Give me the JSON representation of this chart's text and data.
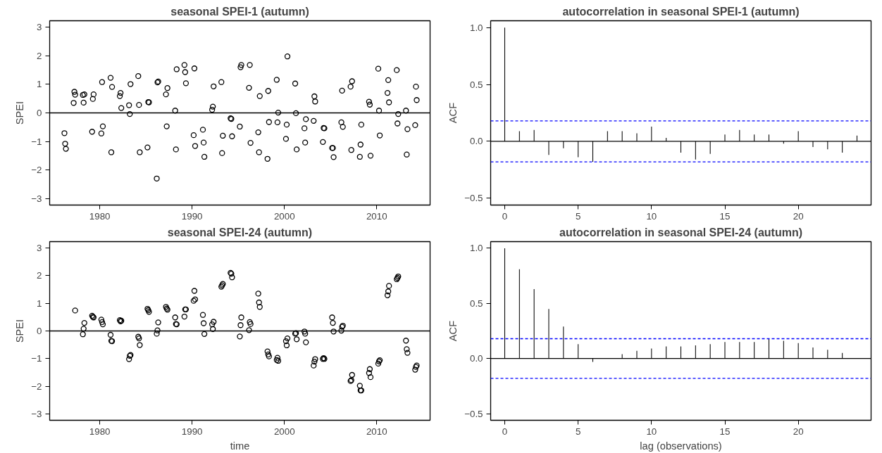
{
  "chart_data": [
    {
      "type": "scatter",
      "title": "seasonal SPEI-1 (autumn)",
      "ylabel": "SPEI",
      "marker": "circle",
      "xlim": [
        1974.57,
        2015.78
      ],
      "ylim": [
        -3.23,
        3.23
      ],
      "xticks": [
        1980,
        1990,
        2000,
        2010
      ],
      "yticks": [
        -3,
        -2,
        -1,
        0,
        1,
        2,
        3
      ],
      "ref_lines": [
        {
          "axis": "y",
          "value": 0,
          "color": "#000000",
          "line_style": "solid"
        }
      ],
      "x": [
        1976.17,
        1976.25,
        1976.33,
        1977.17,
        1977.25,
        1977.33,
        1978.17,
        1978.25,
        1978.33,
        1979.17,
        1979.25,
        1979.33,
        1980.17,
        1980.25,
        1980.33,
        1981.17,
        1981.25,
        1981.33,
        1982.17,
        1982.25,
        1982.33,
        1983.17,
        1983.25,
        1983.33,
        1984.17,
        1984.25,
        1984.33,
        1985.17,
        1985.25,
        1985.33,
        1986.17,
        1986.25,
        1986.33,
        1987.17,
        1987.25,
        1987.33,
        1988.17,
        1988.25,
        1988.33,
        1989.17,
        1989.25,
        1989.33,
        1990.17,
        1990.25,
        1990.33,
        1991.17,
        1991.25,
        1991.33,
        1992.17,
        1992.25,
        1992.33,
        1993.17,
        1993.25,
        1993.33,
        1994.17,
        1994.25,
        1994.33,
        1995.17,
        1995.25,
        1995.33,
        1996.17,
        1996.25,
        1996.33,
        1997.17,
        1997.25,
        1997.33,
        1998.17,
        1998.25,
        1998.33,
        1999.17,
        1999.25,
        1999.33,
        2000.17,
        2000.25,
        2000.33,
        2001.17,
        2001.25,
        2001.33,
        2002.17,
        2002.25,
        2002.33,
        2003.17,
        2003.25,
        2003.33,
        2004.17,
        2004.25,
        2004.33,
        2005.17,
        2005.25,
        2005.33,
        2006.17,
        2006.25,
        2006.33,
        2007.17,
        2007.25,
        2007.33,
        2008.17,
        2008.25,
        2008.33,
        2009.17,
        2009.25,
        2009.33,
        2010.17,
        2010.25,
        2010.33,
        2011.17,
        2011.25,
        2011.33,
        2012.17,
        2012.25,
        2012.33,
        2013.17,
        2013.25,
        2013.33,
        2014.17,
        2014.25,
        2014.33
      ],
      "series": [
        {
          "color": "#000000",
          "values": [
            -0.71,
            -1.08,
            -1.26,
            0.35,
            0.74,
            0.64,
            0.63,
            0.36,
            0.65,
            -0.66,
            0.49,
            0.65,
            -0.72,
            1.08,
            -0.47,
            1.23,
            -1.38,
            0.91,
            0.59,
            0.7,
            0.17,
            0.27,
            -0.04,
            1.01,
            1.29,
            0.28,
            -1.38,
            -1.21,
            0.38,
            0.37,
            -2.3,
            1.07,
            1.1,
            0.65,
            -0.47,
            0.87,
            0.08,
            -1.28,
            1.53,
            1.68,
            1.43,
            1.04,
            -0.78,
            1.56,
            -1.16,
            -0.59,
            -1.04,
            -1.54,
            0.11,
            0.22,
            0.93,
            1.08,
            -1.41,
            -0.8,
            -0.19,
            -0.21,
            -0.82,
            -0.48,
            1.6,
            1.68,
            0.88,
            1.68,
            -1.05,
            -0.68,
            -1.38,
            0.59,
            -1.61,
            0.77,
            -0.32,
            1.16,
            -0.33,
            0.01,
            -0.91,
            -0.41,
            1.98,
            1.03,
            -0.01,
            -1.28,
            -0.54,
            -1.04,
            -0.22,
            -0.28,
            0.58,
            0.4,
            -1.02,
            -0.53,
            -0.54,
            -1.23,
            -1.23,
            -1.55,
            -0.33,
            0.78,
            -0.49,
            0.92,
            -1.3,
            1.11,
            -1.54,
            -1.11,
            -0.41,
            0.39,
            0.29,
            -1.5,
            1.55,
            0.08,
            -0.79,
            0.7,
            1.15,
            0.37,
            1.5,
            -0.37,
            -0.04,
            0.08,
            -1.46,
            -0.57,
            -0.43,
            0.92,
            0.45
          ]
        }
      ]
    },
    {
      "type": "bar",
      "title": "autocorrelation in seasonal SPEI-1 (autumn)",
      "ylabel": "ACF",
      "xlim": [
        -0.96,
        24.96
      ],
      "ylim": [
        -0.56,
        1.06
      ],
      "xticks": [
        0,
        5,
        10,
        15,
        20
      ],
      "yticks": [
        {
          "value": -0.5,
          "label": "−0.5"
        },
        {
          "value": 0,
          "label": "0.0"
        },
        {
          "value": 0.5,
          "label": "0.5"
        },
        {
          "value": 1,
          "label": "1.0"
        }
      ],
      "ref_lines": [
        {
          "axis": "y",
          "value": 0,
          "color": "#000000",
          "line_style": "solid"
        },
        {
          "axis": "y",
          "value": 0.18,
          "color": "#0000ff",
          "line_style": "dashed"
        },
        {
          "axis": "y",
          "value": -0.18,
          "color": "#0000ff",
          "line_style": "dashed"
        }
      ],
      "x": [
        0,
        1,
        2,
        3,
        4,
        5,
        6,
        7,
        8,
        9,
        10,
        11,
        12,
        13,
        14,
        15,
        16,
        17,
        18,
        19,
        20,
        21,
        22,
        23,
        24
      ],
      "series": [
        {
          "color": "#000000",
          "values": [
            1.0,
            0.09,
            0.1,
            -0.12,
            -0.06,
            -0.14,
            -0.18,
            0.09,
            0.09,
            0.07,
            0.13,
            0.03,
            -0.1,
            -0.16,
            -0.11,
            0.06,
            0.1,
            0.06,
            0.06,
            -0.02,
            0.09,
            -0.05,
            -0.07,
            -0.1,
            0.05
          ]
        }
      ]
    },
    {
      "type": "scatter",
      "title": "seasonal SPEI-24 (autumn)",
      "ylabel": "SPEI",
      "xlabel": "time",
      "marker": "circle",
      "xlim": [
        1974.57,
        2015.78
      ],
      "ylim": [
        -3.23,
        3.23
      ],
      "xticks": [
        1980,
        1990,
        2000,
        2010
      ],
      "yticks": [
        -3,
        -2,
        -1,
        0,
        1,
        2,
        3
      ],
      "ref_lines": [
        {
          "axis": "y",
          "value": 0,
          "color": "#000000",
          "line_style": "solid"
        }
      ],
      "x": [
        1977.33,
        1978.17,
        1978.25,
        1978.33,
        1979.17,
        1979.25,
        1979.33,
        1980.17,
        1980.25,
        1980.33,
        1981.17,
        1981.25,
        1981.33,
        1982.17,
        1982.25,
        1982.33,
        1983.17,
        1983.25,
        1983.33,
        1984.17,
        1984.25,
        1984.33,
        1985.17,
        1985.25,
        1985.33,
        1986.17,
        1986.25,
        1986.33,
        1987.17,
        1987.25,
        1987.33,
        1988.17,
        1988.25,
        1988.33,
        1989.17,
        1989.25,
        1989.33,
        1990.17,
        1990.25,
        1990.33,
        1991.17,
        1991.25,
        1991.33,
        1992.17,
        1992.25,
        1992.33,
        1993.17,
        1993.25,
        1993.33,
        1994.17,
        1994.25,
        1994.33,
        1995.17,
        1995.25,
        1995.33,
        1996.17,
        1996.25,
        1996.33,
        1997.17,
        1997.25,
        1997.33,
        1998.17,
        1998.25,
        1998.33,
        1999.17,
        1999.25,
        1999.33,
        2000.17,
        2000.25,
        2000.33,
        2001.17,
        2001.25,
        2001.33,
        2002.17,
        2002.25,
        2002.33,
        2003.17,
        2003.25,
        2003.33,
        2004.17,
        2004.25,
        2004.33,
        2005.17,
        2005.25,
        2005.33,
        2006.17,
        2006.25,
        2006.33,
        2007.17,
        2007.25,
        2007.33,
        2008.17,
        2008.25,
        2008.33,
        2009.17,
        2009.25,
        2009.33,
        2010.17,
        2010.25,
        2010.33,
        2011.17,
        2011.25,
        2011.33,
        2012.17,
        2012.25,
        2012.33,
        2013.17,
        2013.25,
        2013.33,
        2014.17,
        2014.25,
        2014.33
      ],
      "series": [
        {
          "color": "#000000",
          "values": [
            0.74,
            -0.12,
            0.08,
            0.29,
            0.55,
            0.51,
            0.49,
            0.41,
            0.32,
            0.24,
            -0.14,
            -0.36,
            -0.37,
            0.39,
            0.35,
            0.37,
            -1.02,
            -0.9,
            -0.87,
            -0.21,
            -0.27,
            -0.51,
            0.8,
            0.75,
            0.69,
            -0.1,
            0.02,
            0.31,
            0.87,
            0.81,
            0.77,
            0.49,
            0.25,
            0.24,
            0.52,
            0.78,
            0.78,
            1.09,
            1.45,
            1.14,
            0.58,
            0.28,
            -0.11,
            0.24,
            0.07,
            0.33,
            1.6,
            1.65,
            1.7,
            2.1,
            2.07,
            1.94,
            -0.2,
            0.21,
            0.49,
            0.03,
            0.32,
            0.25,
            1.35,
            1.03,
            0.87,
            -0.74,
            -0.85,
            -0.92,
            -1.05,
            -0.97,
            -1.08,
            -0.37,
            -0.52,
            -0.27,
            -0.1,
            -0.08,
            -0.3,
            -0.02,
            -0.1,
            -0.41,
            -1.25,
            -1.11,
            -1.02,
            -1.01,
            -0.98,
            -1.01,
            0.49,
            0.29,
            -0.02,
            0.01,
            0.15,
            0.19,
            -1.81,
            -1.78,
            -1.59,
            -1.98,
            -2.15,
            -2.15,
            -1.52,
            -1.38,
            -1.67,
            -1.18,
            -1.1,
            -1.06,
            1.29,
            1.43,
            1.63,
            1.87,
            1.92,
            1.97,
            -0.35,
            -0.66,
            -0.79,
            -1.4,
            -1.3,
            -1.25
          ]
        }
      ]
    },
    {
      "type": "bar",
      "title": "autocorrelation in seasonal SPEI-24 (autumn)",
      "ylabel": "ACF",
      "xlabel": "lag (observations)",
      "xlim": [
        -0.96,
        24.96
      ],
      "ylim": [
        -0.56,
        1.06
      ],
      "xticks": [
        0,
        5,
        10,
        15,
        20
      ],
      "yticks": [
        {
          "value": -0.5,
          "label": "−0.5"
        },
        {
          "value": 0,
          "label": "0.0"
        },
        {
          "value": 0.5,
          "label": "0.5"
        },
        {
          "value": 1,
          "label": "1.0"
        }
      ],
      "ref_lines": [
        {
          "axis": "y",
          "value": 0,
          "color": "#000000",
          "line_style": "solid"
        },
        {
          "axis": "y",
          "value": 0.18,
          "color": "#0000ff",
          "line_style": "dashed"
        },
        {
          "axis": "y",
          "value": -0.18,
          "color": "#0000ff",
          "line_style": "dashed"
        }
      ],
      "x": [
        0,
        1,
        2,
        3,
        4,
        5,
        6,
        7,
        8,
        9,
        10,
        11,
        12,
        13,
        14,
        15,
        16,
        17,
        18,
        19,
        20,
        21,
        22,
        23
      ],
      "series": [
        {
          "color": "#000000",
          "values": [
            1.0,
            0.81,
            0.63,
            0.45,
            0.29,
            0.13,
            -0.03,
            null,
            0.04,
            0.07,
            0.09,
            0.11,
            0.11,
            0.12,
            0.13,
            0.15,
            0.15,
            0.15,
            0.18,
            0.16,
            0.14,
            0.1,
            0.08,
            0.05
          ]
        }
      ]
    }
  ]
}
